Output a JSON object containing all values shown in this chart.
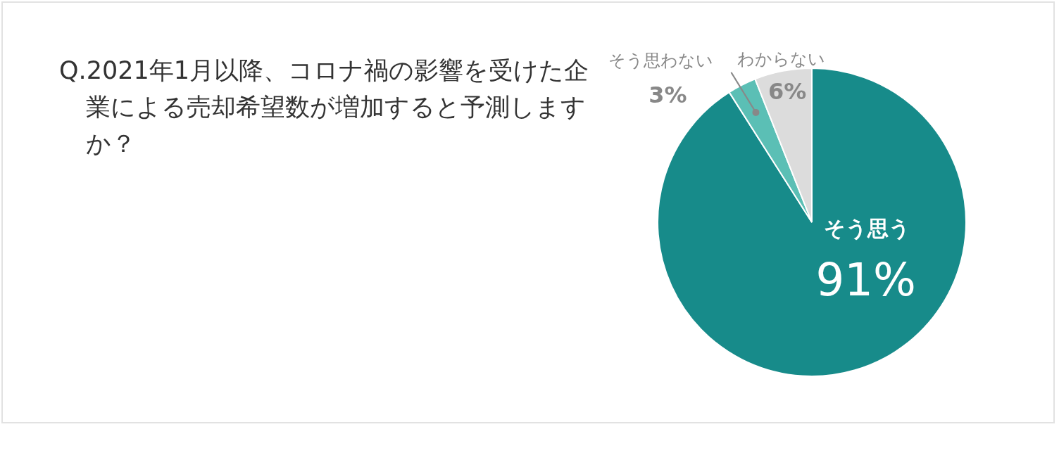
{
  "chart_data": {
    "type": "pie",
    "title": "Q.2021年1月以降、コロナ禍の影響を受けた企業による売却希望数が増加すると予測しますか？",
    "categories": [
      "そう思う",
      "そう思わない",
      "わからない"
    ],
    "values": [
      91,
      3,
      6
    ],
    "value_labels": [
      "91%",
      "3%",
      "6%"
    ],
    "colors": [
      "#178b8a",
      "#5bbfb5",
      "#dcdcdc"
    ]
  }
}
